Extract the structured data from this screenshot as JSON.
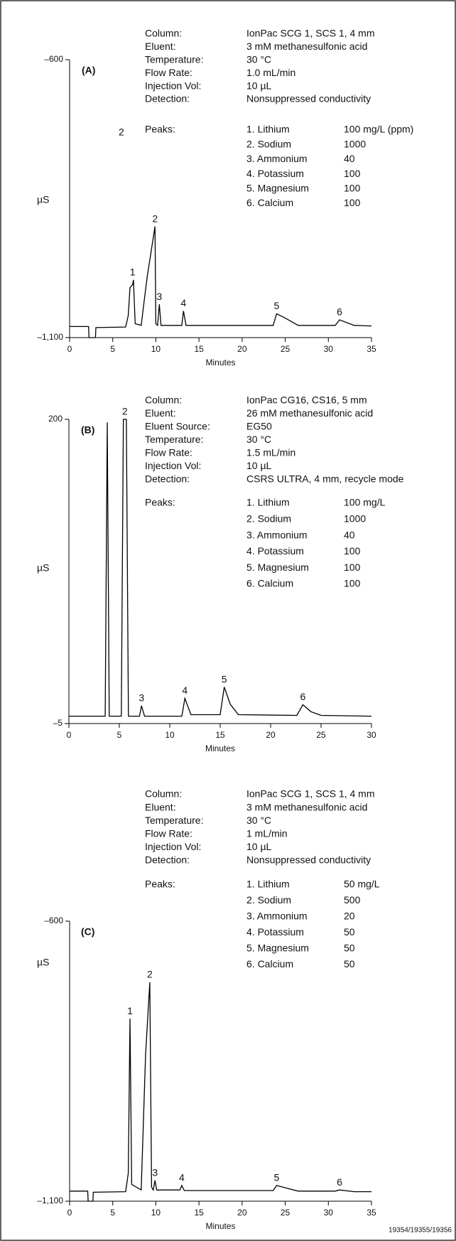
{
  "chart_data": [
    {
      "type": "line",
      "panel_label": "(A)",
      "xlabel": "Minutes",
      "ylabel": "µS",
      "xlim": [
        0,
        35
      ],
      "xticks": [
        0,
        5,
        10,
        15,
        20,
        25,
        30,
        35
      ],
      "ylim": [
        -1100,
        -600
      ],
      "yticks": [
        {
          "value": -1100,
          "label": "–1,100"
        },
        {
          "value": -600,
          "label": "–600"
        }
      ],
      "conditions": [
        [
          "Column:",
          "IonPac SCG 1, SCS 1, 4 mm"
        ],
        [
          "Eluent:",
          "3 mM methanesulfonic acid"
        ],
        [
          "Temperature:",
          "30 °C"
        ],
        [
          "Flow Rate:",
          "1.0 mL/min"
        ],
        [
          "Injection Vol:",
          "10 µL"
        ],
        [
          "Detection:",
          "Nonsuppressed conductivity"
        ]
      ],
      "peaks_heading": "Peaks:",
      "peaks": [
        [
          "1. Lithium",
          "100 mg/L (ppm)"
        ],
        [
          "2. Sodium",
          "1000"
        ],
        [
          "3. Ammonium",
          "40"
        ],
        [
          "4. Potassium",
          "100"
        ],
        [
          "5. Magnesium",
          "100"
        ],
        [
          "6. Calcium",
          "100"
        ]
      ],
      "stray_label": "2",
      "annotations": [
        {
          "text": "1",
          "x": 7.3,
          "y": -996
        },
        {
          "text": "2",
          "x": 9.9,
          "y": -900
        },
        {
          "text": "3",
          "x": 10.4,
          "y": -1040
        },
        {
          "text": "4",
          "x": 13.2,
          "y": -1052
        },
        {
          "text": "5",
          "x": 24.0,
          "y": -1057
        },
        {
          "text": "6",
          "x": 31.3,
          "y": -1068
        }
      ],
      "series": [
        {
          "color": "#000000",
          "x": [
            0,
            2.2,
            2.25,
            3.0,
            3.05,
            6.5,
            6.8,
            7.0,
            7.3,
            7.4,
            7.6,
            8.3,
            8.6,
            9.0,
            9.5,
            9.9,
            10.0,
            10.2,
            10.4,
            10.6,
            13.0,
            13.2,
            13.5,
            23.6,
            24.0,
            25.0,
            26.5,
            30.8,
            31.3,
            33.0,
            35.0
          ],
          "values": [
            -1080,
            -1080,
            -1100,
            -1100,
            -1082,
            -1081,
            -1060,
            -1010,
            -1005,
            -996,
            -1075,
            -1078,
            -1040,
            -990,
            -940,
            -900,
            -1075,
            -1078,
            -1040,
            -1078,
            -1078,
            -1052,
            -1078,
            -1078,
            -1057,
            -1065,
            -1078,
            -1078,
            -1068,
            -1078,
            -1079
          ]
        }
      ]
    },
    {
      "type": "line",
      "panel_label": "(B)",
      "xlabel": "Minutes",
      "ylabel": "µS",
      "xlim": [
        0,
        30
      ],
      "xticks": [
        0,
        5,
        10,
        15,
        20,
        25,
        30
      ],
      "ylim": [
        -5,
        200
      ],
      "yticks": [
        {
          "value": -5,
          "label": "–5"
        },
        200
      ],
      "conditions": [
        [
          "Column:",
          "IonPac CG16, CS16, 5 mm"
        ],
        [
          "Eluent:",
          "26 mM methanesulfonic acid"
        ],
        [
          "Eluent Source:",
          "EG50"
        ],
        [
          "Temperature:",
          "30 °C"
        ],
        [
          "Flow Rate:",
          "1.5 mL/min"
        ],
        [
          "Injection Vol:",
          "10 µL"
        ],
        [
          "Detection:",
          "CSRS ULTRA, 4 mm, recycle mode"
        ]
      ],
      "peaks_heading": "Peaks:",
      "peaks": [
        [
          "1. Lithium",
          "100 mg/L"
        ],
        [
          "2. Sodium",
          "1000"
        ],
        [
          "3. Ammonium",
          "40"
        ],
        [
          "4. Potassium",
          "100"
        ],
        [
          "5. Magnesium",
          "100"
        ],
        [
          "6. Calcium",
          "100"
        ]
      ],
      "annotations": [
        {
          "text": "2",
          "x": 5.55,
          "y": 200
        },
        {
          "text": "3",
          "x": 7.2,
          "y": 7
        },
        {
          "text": "4",
          "x": 11.5,
          "y": 12
        },
        {
          "text": "5",
          "x": 15.4,
          "y": 19.6
        },
        {
          "text": "6",
          "x": 23.2,
          "y": 7.7
        }
      ],
      "series": [
        {
          "color": "#000000",
          "x": [
            0,
            3.6,
            3.8,
            4.0,
            5.2,
            5.4,
            5.7,
            5.9,
            7.0,
            7.2,
            7.5,
            11.2,
            11.5,
            12.1,
            15.0,
            15.4,
            16.0,
            16.8,
            22.6,
            23.2,
            24.0,
            25.0,
            30.0
          ],
          "values": [
            0,
            0,
            198,
            0,
            0,
            200,
            200,
            0,
            0,
            7,
            0,
            0,
            12,
            1,
            1,
            19.6,
            8,
            1,
            0.5,
            7.7,
            3,
            0.5,
            0
          ]
        }
      ]
    },
    {
      "type": "line",
      "panel_label": "(C)",
      "xlabel": "Minutes",
      "ylabel": "µS",
      "xlim": [
        0,
        35
      ],
      "xticks": [
        0,
        5,
        10,
        15,
        20,
        25,
        30,
        35
      ],
      "ylim": [
        -1100,
        -600
      ],
      "yticks": [
        {
          "value": -1100,
          "label": "–1,100"
        },
        {
          "value": -600,
          "label": "–600"
        }
      ],
      "conditions": [
        [
          "Column:",
          "IonPac SCG 1, SCS 1, 4 mm"
        ],
        [
          "Eluent:",
          "3 mM methanesulfonic acid"
        ],
        [
          "Temperature:",
          "30 °C"
        ],
        [
          "Flow Rate:",
          "1 mL/min"
        ],
        [
          "Injection Vol:",
          "10 µL"
        ],
        [
          "Detection:",
          "Nonsuppressed conductivity"
        ]
      ],
      "peaks_heading": "Peaks:",
      "peaks": [
        [
          "1. Lithium",
          "50 mg/L"
        ],
        [
          "2. Sodium",
          "500"
        ],
        [
          "3. Ammonium",
          "20"
        ],
        [
          "4. Potassium",
          "50"
        ],
        [
          "5. Magnesium",
          "50"
        ],
        [
          "6. Calcium",
          "50"
        ]
      ],
      "annotations": [
        {
          "text": "1",
          "x": 7.0,
          "y": -774
        },
        {
          "text": "2",
          "x": 9.3,
          "y": -709
        },
        {
          "text": "3",
          "x": 9.9,
          "y": -1063
        },
        {
          "text": "4",
          "x": 13.0,
          "y": -1072
        },
        {
          "text": "5",
          "x": 24.0,
          "y": -1072
        },
        {
          "text": "6",
          "x": 31.3,
          "y": -1080
        }
      ],
      "series": [
        {
          "color": "#000000",
          "x": [
            0,
            2.1,
            2.15,
            2.7,
            2.75,
            6.5,
            6.8,
            7.0,
            7.2,
            8.3,
            8.8,
            9.3,
            9.5,
            9.7,
            9.9,
            10.1,
            12.8,
            13.0,
            13.3,
            23.6,
            24.0,
            25.0,
            26.5,
            30.8,
            31.3,
            33.0,
            35.0
          ],
          "values": [
            -1082,
            -1082,
            -1100,
            -1100,
            -1084,
            -1083,
            -1050,
            -774,
            -1070,
            -1080,
            -840,
            -709,
            -1075,
            -1080,
            -1063,
            -1080,
            -1080,
            -1072,
            -1081,
            -1081,
            -1072,
            -1076,
            -1082,
            -1082,
            -1080,
            -1083,
            -1083
          ]
        }
      ]
    }
  ],
  "footer": "19354/19355/19356"
}
